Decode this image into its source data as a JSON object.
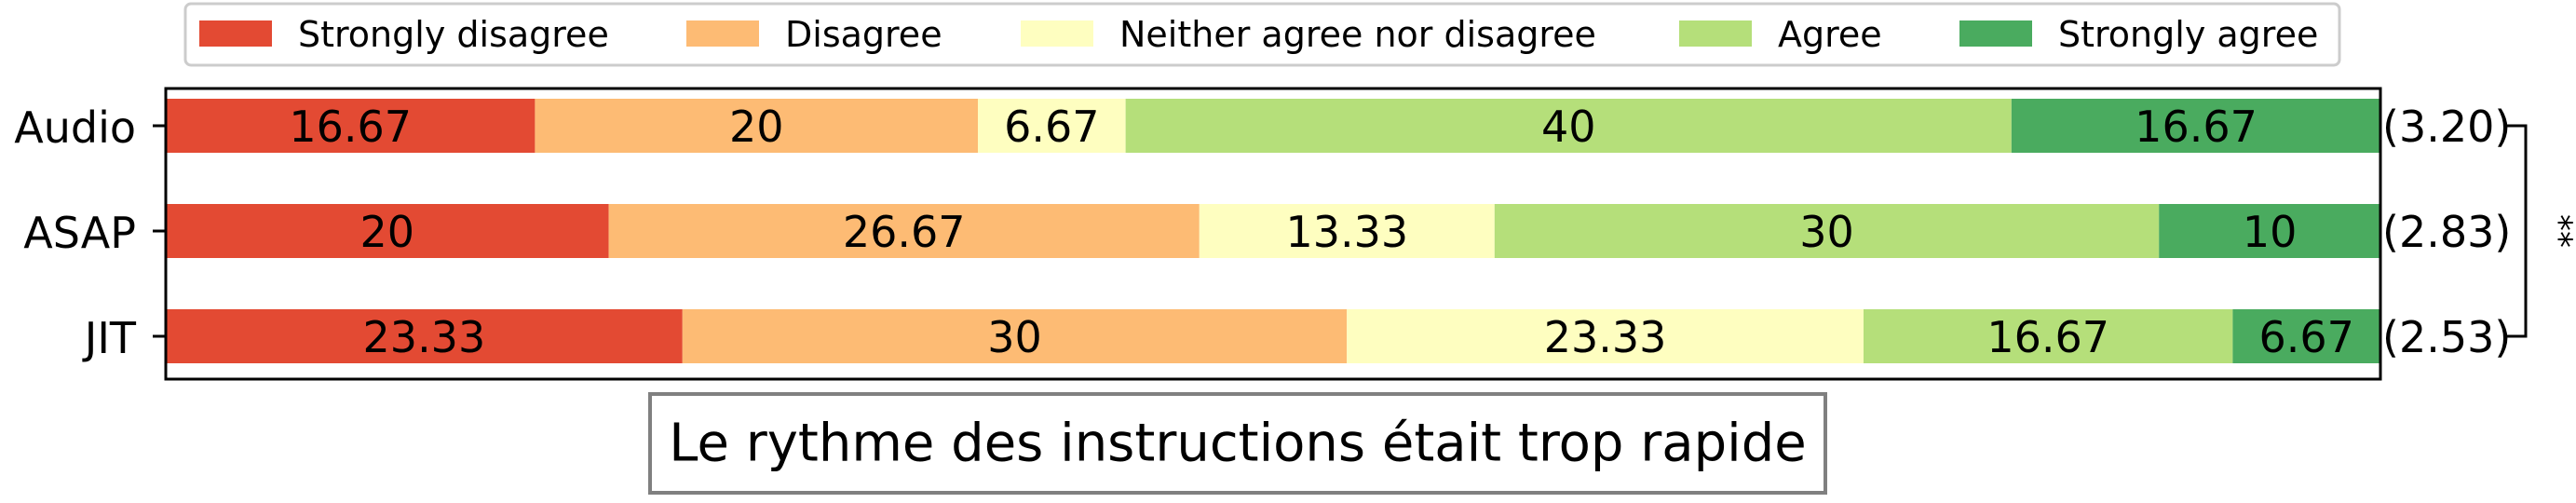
{
  "chart_data": {
    "type": "bar",
    "orientation": "horizontal",
    "stacked": true,
    "categories": [
      "Audio",
      "ASAP",
      "JIT"
    ],
    "series": [
      {
        "name": "Strongly disagree",
        "color": "#e34a33",
        "values": [
          16.67,
          20,
          23.33
        ]
      },
      {
        "name": "Disagree",
        "color": "#fdbb74",
        "values": [
          20,
          26.67,
          30
        ]
      },
      {
        "name": "Neither agree nor disagree",
        "color": "#fefec0",
        "values": [
          6.67,
          13.33,
          23.33
        ]
      },
      {
        "name": "Agree",
        "color": "#b5df7a",
        "values": [
          40,
          30,
          16.67
        ]
      },
      {
        "name": "Strongly agree",
        "color": "#4aab5f",
        "values": [
          16.67,
          10,
          6.67
        ]
      }
    ],
    "means": [
      "(3.20)",
      "(2.83)",
      "(2.53)"
    ],
    "significance": {
      "from": "Audio",
      "to": "JIT",
      "label": "**"
    },
    "title": "Le rythme des instructions était trop rapide",
    "xlim": [
      0,
      100
    ],
    "legend_position": "top"
  }
}
